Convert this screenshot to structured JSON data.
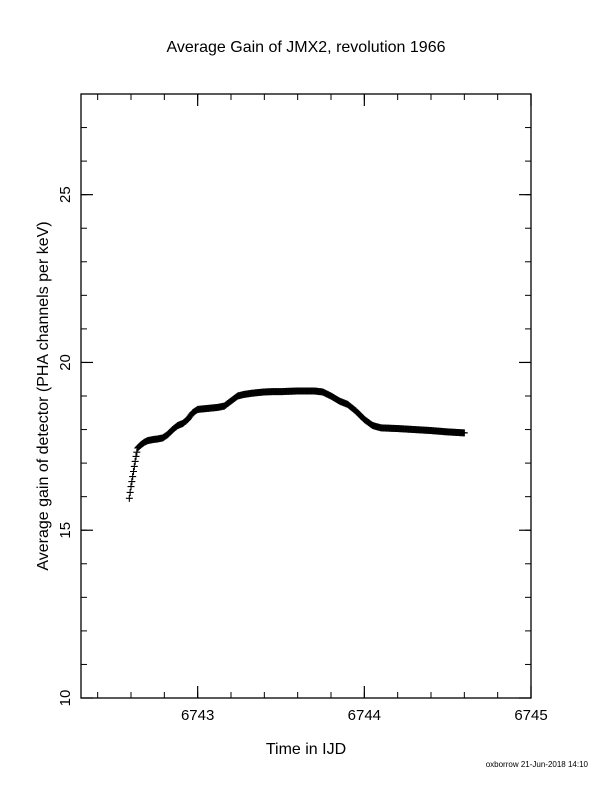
{
  "chart_data": {
    "type": "scatter",
    "title": "Average Gain of JMX2, revolution 1966",
    "xlabel": "Time in IJD",
    "ylabel": "Average gain of detector (PHA channels per keV)",
    "xlim": [
      6742.3,
      6745
    ],
    "ylim": [
      10,
      28
    ],
    "x_ticks": [
      6743,
      6744,
      6745
    ],
    "y_ticks": [
      10,
      15,
      20,
      25
    ],
    "x_tick_labels": [
      "6743",
      "6744",
      "6745"
    ],
    "y_tick_labels": [
      "10",
      "15",
      "20",
      "25"
    ],
    "marker": "plus",
    "grid": false,
    "series": [
      {
        "x": [
          6742.59,
          6742.6,
          6742.61,
          6742.62,
          6742.63,
          6742.64,
          6742.66,
          6742.68,
          6742.7,
          6742.73,
          6742.76,
          6742.79,
          6742.82,
          6742.85,
          6742.88,
          6742.91,
          6742.94,
          6742.97,
          6743.0,
          6743.04,
          6743.08,
          6743.12,
          6743.16,
          6743.2,
          6743.24,
          6743.28,
          6743.32,
          6743.36,
          6743.4,
          6743.45,
          6743.5,
          6743.55,
          6743.6,
          6743.65,
          6743.7,
          6743.75,
          6743.8,
          6743.85,
          6743.9,
          6743.95,
          6744.0,
          6744.05,
          6744.1,
          6744.15,
          6744.2,
          6744.3,
          6744.4,
          6744.5,
          6744.6
        ],
        "y": [
          15.95,
          16.3,
          16.6,
          16.9,
          17.2,
          17.45,
          17.55,
          17.62,
          17.67,
          17.7,
          17.72,
          17.75,
          17.85,
          18.0,
          18.12,
          18.18,
          18.3,
          18.5,
          18.6,
          18.62,
          18.64,
          18.66,
          18.7,
          18.85,
          19.0,
          19.05,
          19.08,
          19.1,
          19.12,
          19.13,
          19.13,
          19.14,
          19.15,
          19.15,
          19.15,
          19.12,
          19.0,
          18.85,
          18.75,
          18.55,
          18.3,
          18.12,
          18.05,
          18.04,
          18.03,
          18.0,
          17.97,
          17.93,
          17.9
        ]
      }
    ]
  },
  "footer": "oxborrow 21-Jun-2018 14:10"
}
